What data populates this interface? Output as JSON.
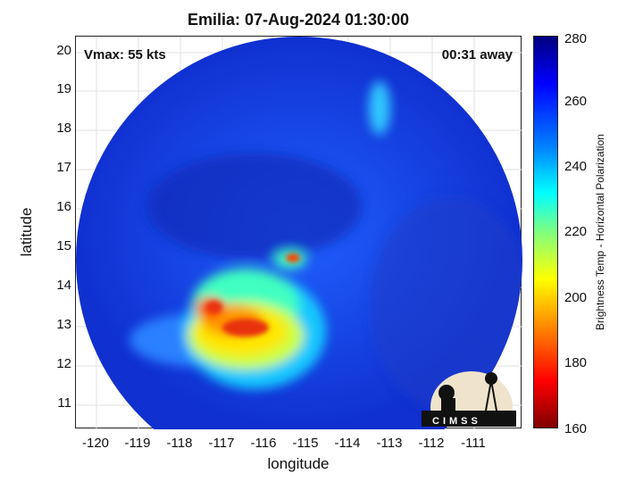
{
  "title": "Emilia: 07-Aug-2024 01:30:00",
  "vmax_label": "Vmax: 55 kts",
  "time_label": "00:31 away",
  "xlabel": "longitude",
  "ylabel": "latitude",
  "x_ticks": [
    "-120",
    "-119",
    "-118",
    "-117",
    "-116",
    "-115",
    "-114",
    "-113",
    "-112",
    "-111"
  ],
  "y_ticks": [
    "20",
    "19",
    "18",
    "17",
    "16",
    "15",
    "14",
    "13",
    "12",
    "11"
  ],
  "colorbar": {
    "label": "Brightness Temp - Horizontal Polarization",
    "ticks": [
      "280",
      "260",
      "240",
      "220",
      "200",
      "180",
      "160"
    ]
  },
  "logo_text": "CIMSS",
  "colors": {
    "background_field": "#1f4fe0",
    "core": "#e83010",
    "outer": "#ffe600"
  }
}
